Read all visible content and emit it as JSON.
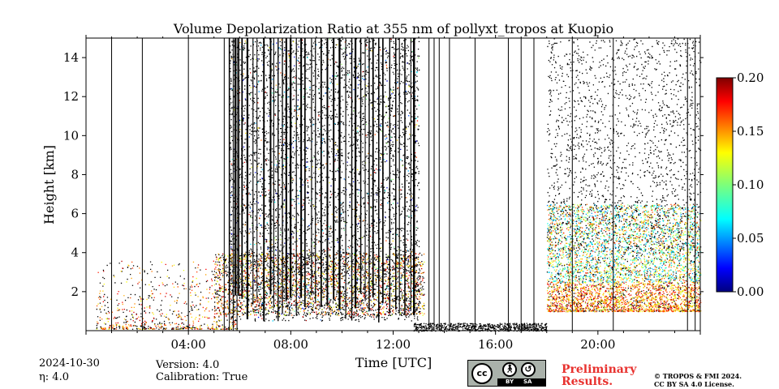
{
  "chart_data": {
    "type": "heatmap",
    "title": "Volume Depolarization Ratio at 355 nm of pollyxt_tropos at Kuopio",
    "xlabel": "Time [UTC]",
    "ylabel": "Height [km]",
    "xlim_hours": [
      0,
      24
    ],
    "ylim": [
      0,
      15
    ],
    "x_ticks": [
      {
        "hour": 4,
        "label": "04:00"
      },
      {
        "hour": 8,
        "label": "08:00"
      },
      {
        "hour": 12,
        "label": "12:00"
      },
      {
        "hour": 16,
        "label": "16:00"
      },
      {
        "hour": 20,
        "label": "20:00"
      }
    ],
    "y_ticks": [
      {
        "value": 2,
        "label": "2"
      },
      {
        "value": 4,
        "label": "4"
      },
      {
        "value": 6,
        "label": "6"
      },
      {
        "value": 8,
        "label": "8"
      },
      {
        "value": 10,
        "label": "10"
      },
      {
        "value": 12,
        "label": "12"
      },
      {
        "value": 14,
        "label": "14"
      }
    ],
    "colorbar": {
      "min": 0.0,
      "max": 0.2,
      "colormap": "jet",
      "ticks": [
        {
          "value": 0.0,
          "label": "0.00"
        },
        {
          "value": 0.05,
          "label": "0.05"
        },
        {
          "value": 0.1,
          "label": "0.10"
        },
        {
          "value": 0.15,
          "label": "0.15"
        },
        {
          "value": 0.2,
          "label": "0.20"
        }
      ]
    },
    "approx_features": {
      "cloud_period_hours": [
        5.6,
        13.0
      ],
      "aerosol_layer_evening_height_km": [
        1.0,
        6.5
      ],
      "aerosol_layer_evening_hours": [
        18.0,
        24.0
      ],
      "near_surface_layer_height_km": [
        0.0,
        1.5
      ]
    }
  },
  "info": {
    "date": "2024-10-30",
    "eta": "η: 4.0",
    "version": "Version: 4.0",
    "calibration": "Calibration: True",
    "preliminary_line1": "Preliminary",
    "preliminary_line2": "Results.",
    "copyright_line1": "© TROPOS & FMI 2024.",
    "copyright_line2": "CC BY SA 4.0 License.",
    "license_by": "BY",
    "license_sa": "SA"
  }
}
